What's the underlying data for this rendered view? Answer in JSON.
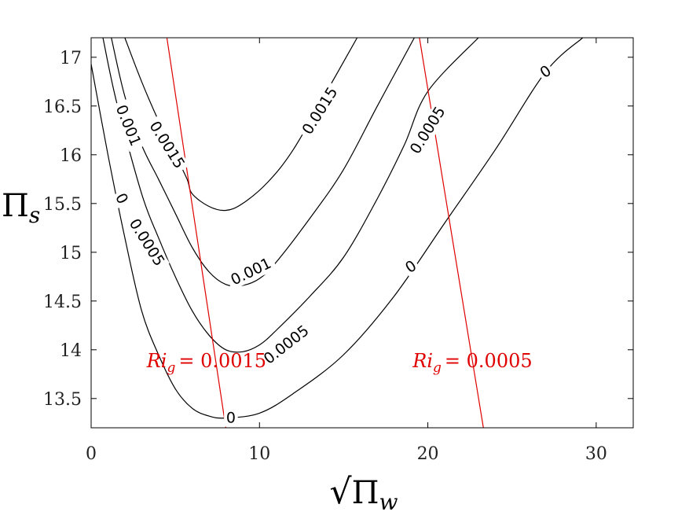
{
  "chart_data": {
    "type": "line",
    "title": "",
    "xlabel": "√Π_w",
    "ylabel": "Π_s",
    "xlim": [
      0,
      32.2
    ],
    "ylim": [
      13.2,
      17.2
    ],
    "x_ticks": [
      0,
      10,
      20,
      30
    ],
    "y_ticks": [
      13.5,
      14,
      14.5,
      15,
      15.5,
      16,
      16.5,
      17
    ],
    "xlabel_parts": {
      "radical": "√",
      "symbol": "Π",
      "subscript": "w"
    },
    "ylabel_parts": {
      "symbol": "Π",
      "subscript": "s"
    },
    "grid": false,
    "contours": [
      {
        "level": "0",
        "points": [
          [
            0,
            16.93
          ],
          [
            1,
            16.0
          ],
          [
            2,
            15.15
          ],
          [
            3,
            14.4
          ],
          [
            4,
            13.95
          ],
          [
            5,
            13.6
          ],
          [
            6,
            13.4
          ],
          [
            7,
            13.32
          ],
          [
            8,
            13.3
          ],
          [
            10,
            13.35
          ],
          [
            12,
            13.55
          ],
          [
            15,
            13.95
          ],
          [
            18,
            14.55
          ],
          [
            21,
            15.3
          ],
          [
            24,
            16.05
          ],
          [
            27,
            16.85
          ],
          [
            29.2,
            17.2
          ]
        ]
      },
      {
        "level": "0.0005",
        "points": [
          [
            0.7,
            17.2
          ],
          [
            1.5,
            16.55
          ],
          [
            3,
            15.6
          ],
          [
            4,
            15.15
          ],
          [
            5,
            14.75
          ],
          [
            6,
            14.4
          ],
          [
            7,
            14.15
          ],
          [
            8,
            14.0
          ],
          [
            9,
            13.98
          ],
          [
            10,
            14.05
          ],
          [
            11,
            14.2
          ],
          [
            13,
            14.55
          ],
          [
            15,
            14.95
          ],
          [
            17,
            15.55
          ],
          [
            18.6,
            16.1
          ],
          [
            20,
            16.65
          ],
          [
            23,
            17.2
          ]
        ]
      },
      {
        "level": "0.001",
        "points": [
          [
            1.2,
            17.2
          ],
          [
            2,
            16.6
          ],
          [
            3,
            16.1
          ],
          [
            4,
            15.75
          ],
          [
            5,
            15.4
          ],
          [
            6,
            15.05
          ],
          [
            7,
            14.8
          ],
          [
            8,
            14.67
          ],
          [
            9,
            14.66
          ],
          [
            10,
            14.73
          ],
          [
            11,
            14.9
          ],
          [
            13,
            15.35
          ],
          [
            15,
            15.85
          ],
          [
            17,
            16.5
          ],
          [
            19.2,
            17.2
          ]
        ]
      },
      {
        "level": "0.0015",
        "points": [
          [
            2,
            17.2
          ],
          [
            3,
            16.75
          ],
          [
            4,
            16.35
          ],
          [
            5,
            16.0
          ],
          [
            5.7,
            15.75
          ],
          [
            6,
            15.6
          ],
          [
            7,
            15.47
          ],
          [
            8,
            15.43
          ],
          [
            9,
            15.5
          ],
          [
            10.5,
            15.72
          ],
          [
            12,
            16.05
          ],
          [
            14,
            16.65
          ],
          [
            15.8,
            17.2
          ]
        ]
      }
    ],
    "contour_labels": [
      {
        "text": "0",
        "x": 8.3,
        "y": 13.3,
        "angle": 0
      },
      {
        "text": "0",
        "x": 19.0,
        "y": 14.85,
        "angle": -34
      },
      {
        "text": "0",
        "x": 27.0,
        "y": 16.85,
        "angle": -34
      },
      {
        "text": "0",
        "x": 1.8,
        "y": 15.55,
        "angle": 62
      },
      {
        "text": "0.0005",
        "x": 3.3,
        "y": 15.1,
        "angle": 58
      },
      {
        "text": "0.0005",
        "x": 11.6,
        "y": 14.05,
        "angle": -38
      },
      {
        "text": "0.0005",
        "x": 20.0,
        "y": 16.25,
        "angle": -58
      },
      {
        "text": "0.001",
        "x": 2.2,
        "y": 16.3,
        "angle": 68
      },
      {
        "text": "0.001",
        "x": 9.5,
        "y": 14.8,
        "angle": -26
      },
      {
        "text": "0.0015",
        "x": 4.5,
        "y": 16.1,
        "angle": 58
      },
      {
        "text": "0.0015",
        "x": 13.6,
        "y": 16.45,
        "angle": -58
      }
    ],
    "ri_lines": [
      {
        "points": [
          [
            4.5,
            17.2
          ],
          [
            8.0,
            13.2
          ]
        ],
        "color": "#e00000"
      },
      {
        "points": [
          [
            19.5,
            17.2
          ],
          [
            23.3,
            13.2
          ]
        ],
        "color": "#e00000"
      }
    ],
    "ri_labels": [
      {
        "prefix": "Ri",
        "sub": "g",
        "value": "= 0.0015",
        "x": 3.3,
        "y": 13.82
      },
      {
        "prefix": "Ri",
        "sub": "g",
        "value": "= 0.0005",
        "x": 19.1,
        "y": 13.82
      }
    ],
    "colors": {
      "contour": "#000000",
      "ri": "#e00000",
      "axis": "#000000"
    }
  }
}
